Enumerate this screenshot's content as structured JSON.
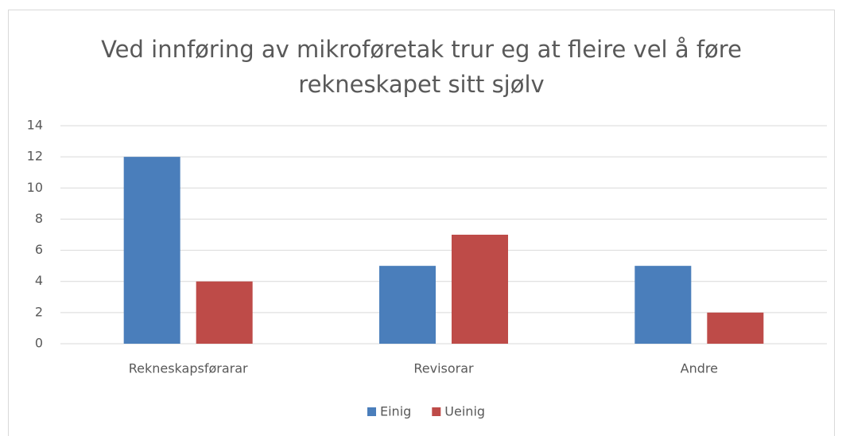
{
  "chart_data": {
    "type": "bar",
    "title": "Ved innføring av mikroføretak trur eg at fleire vel å føre rekneskapet sitt sjølv",
    "categories": [
      "Rekneskapsførarar",
      "Revisorar",
      "Andre"
    ],
    "series": [
      {
        "name": "Einig",
        "color": "#4a7ebb",
        "values": [
          12,
          5,
          5
        ]
      },
      {
        "name": "Ueinig",
        "color": "#be4b48",
        "values": [
          4,
          7,
          2
        ]
      }
    ],
    "ylim": [
      0,
      14
    ],
    "yticks": [
      0,
      2,
      4,
      6,
      8,
      10,
      12,
      14
    ],
    "grid": true,
    "legend": "bottom"
  }
}
